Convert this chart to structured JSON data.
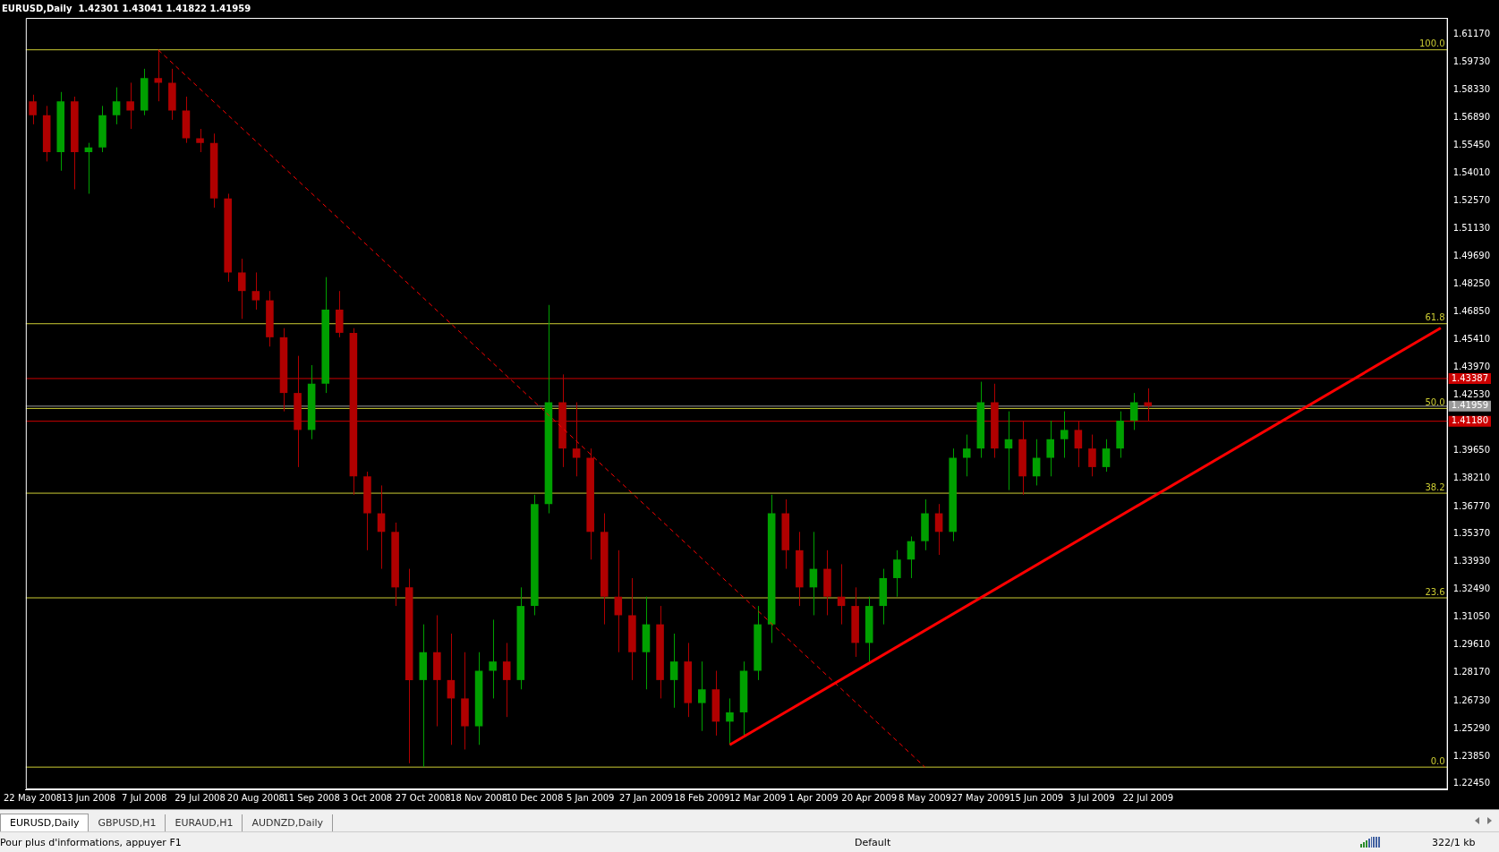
{
  "chart_data": {
    "type": "candlestick",
    "title": "EURUSD,Daily  1.42301 1.43041 1.41822 1.41959",
    "categories": [
      "22 May 2008",
      null,
      null,
      null,
      "13 Jun 2008",
      null,
      null,
      null,
      "7 Jul 2008",
      null,
      null,
      null,
      "29 Jul 2008",
      null,
      null,
      null,
      "20 Aug 2008",
      null,
      null,
      null,
      "11 Sep 2008",
      null,
      null,
      null,
      "3 Oct 2008",
      null,
      null,
      null,
      "27 Oct 2008",
      null,
      null,
      null,
      "18 Nov 2008",
      null,
      null,
      null,
      "10 Dec 2008",
      null,
      null,
      null,
      "5 Jan 2009",
      null,
      null,
      null,
      "27 Jan 2009",
      null,
      null,
      null,
      "18 Feb 2009",
      null,
      null,
      null,
      "12 Mar 2009",
      null,
      null,
      null,
      "1 Apr 2009",
      null,
      null,
      null,
      "20 Apr 2009",
      null,
      null,
      null,
      "8 May 2009",
      null,
      null,
      null,
      "27 May 2009",
      null,
      null,
      null,
      "15 Jun 2009",
      null,
      null,
      null,
      "3 Jul 2009",
      null,
      null,
      null,
      "22 Jul 2009",
      null,
      null,
      null,
      null,
      null,
      null,
      null,
      null,
      null,
      null,
      null,
      null,
      null,
      null,
      null,
      null,
      null,
      null,
      null,
      null,
      null
    ],
    "series": [
      {
        "color": "#00a000",
        "ohlc": [
          null,
          null,
          [
            1.5509,
            1.582,
            1.5413,
            1.5772
          ],
          null,
          [
            1.5509,
            1.5557,
            1.5294,
            1.5533
          ],
          [
            1.5533,
            1.5748,
            1.5509,
            1.57
          ],
          [
            1.57,
            1.5844,
            1.5653,
            1.5772
          ],
          null,
          [
            1.5724,
            1.594,
            1.57,
            1.5892
          ],
          null,
          null,
          null,
          null,
          null,
          null,
          null,
          null,
          null,
          null,
          null,
          [
            1.4073,
            1.4408,
            1.4025,
            1.4312
          ],
          [
            1.4312,
            1.4863,
            1.4264,
            1.4695
          ],
          null,
          null,
          null,
          null,
          null,
          null,
          [
            1.278,
            1.3068,
            1.233,
            1.2924
          ],
          null,
          null,
          null,
          [
            1.2541,
            1.2924,
            1.2445,
            1.2828
          ],
          [
            1.2828,
            1.3092,
            1.2685,
            1.2876
          ],
          null,
          [
            1.278,
            1.3259,
            1.2732,
            1.3163
          ],
          [
            1.3163,
            1.3738,
            1.3115,
            1.369
          ],
          [
            1.369,
            1.4719,
            1.3642,
            1.4216
          ],
          null,
          null,
          null,
          null,
          null,
          null,
          [
            1.2924,
            1.3211,
            1.2732,
            1.3068
          ],
          null,
          [
            1.278,
            1.302,
            1.2637,
            1.2876
          ],
          null,
          [
            1.2661,
            1.2876,
            1.2517,
            1.2732
          ],
          null,
          [
            1.2565,
            1.2685,
            1.2445,
            1.2613
          ],
          [
            1.2613,
            1.2876,
            1.2493,
            1.2828
          ],
          [
            1.2828,
            1.3163,
            1.278,
            1.3068
          ],
          [
            1.3068,
            1.3738,
            1.2972,
            1.3642
          ],
          null,
          null,
          [
            1.3259,
            1.3546,
            1.3115,
            1.3355
          ],
          null,
          null,
          null,
          [
            1.2972,
            1.3211,
            1.2876,
            1.3163
          ],
          [
            1.3163,
            1.3355,
            1.3068,
            1.3307
          ],
          [
            1.3307,
            1.3451,
            1.3211,
            1.3403
          ],
          [
            1.3403,
            1.3522,
            1.3307,
            1.3498
          ],
          [
            1.3498,
            1.3714,
            1.3451,
            1.3642
          ],
          null,
          [
            1.3546,
            1.3977,
            1.3498,
            1.3929
          ],
          [
            1.3929,
            1.4049,
            1.3833,
            1.3977
          ],
          [
            1.3977,
            1.4322,
            1.3929,
            1.4216
          ],
          null,
          [
            1.3977,
            1.4169,
            1.3762,
            1.4025
          ],
          null,
          [
            1.3833,
            1.4025,
            1.3786,
            1.3929
          ],
          [
            1.3929,
            1.4121,
            1.3833,
            1.4025
          ],
          [
            1.4025,
            1.4169,
            1.3929,
            1.4073
          ],
          null,
          null,
          [
            1.3881,
            1.4025,
            1.3857,
            1.3977
          ],
          [
            1.3977,
            1.4169,
            1.3929,
            1.4121
          ],
          [
            1.4121,
            1.4264,
            1.4073,
            1.4216
          ],
          null,
          null,
          null,
          null,
          null,
          null,
          null,
          null,
          null,
          null,
          null,
          null,
          null,
          null,
          null,
          null,
          null,
          null,
          null,
          null,
          null,
          null
        ]
      },
      {
        "color": "#b00000",
        "ohlc": [
          [
            1.5772,
            1.5806,
            1.5653,
            1.57
          ],
          [
            1.57,
            1.5748,
            1.5461,
            1.5509
          ],
          null,
          [
            1.5772,
            1.5796,
            1.5317,
            1.5509
          ],
          null,
          null,
          null,
          [
            1.5772,
            1.5868,
            1.5629,
            1.5724
          ],
          null,
          [
            1.5892,
            1.6038,
            1.5772,
            1.5868
          ],
          [
            1.5868,
            1.594,
            1.5676,
            1.5724
          ],
          [
            1.5724,
            1.5796,
            1.5557,
            1.5581
          ],
          [
            1.5581,
            1.5629,
            1.5509,
            1.5557
          ],
          [
            1.5557,
            1.5605,
            1.5222,
            1.527
          ],
          [
            1.527,
            1.5294,
            1.4839,
            1.4887
          ],
          [
            1.4887,
            1.4958,
            1.4647,
            1.4791
          ],
          [
            1.4791,
            1.4887,
            1.4695,
            1.4743
          ],
          [
            1.4743,
            1.4791,
            1.4504,
            1.4552
          ],
          [
            1.4552,
            1.4599,
            1.4169,
            1.4264
          ],
          [
            1.4264,
            1.4456,
            1.3881,
            1.4073
          ],
          null,
          null,
          [
            1.4695,
            1.4791,
            1.4552,
            1.4575
          ],
          [
            1.4575,
            1.4599,
            1.3738,
            1.3833
          ],
          [
            1.3833,
            1.3857,
            1.3451,
            1.3642
          ],
          [
            1.3642,
            1.3786,
            1.3355,
            1.3546
          ],
          [
            1.3546,
            1.3594,
            1.3163,
            1.3259
          ],
          [
            1.3259,
            1.3355,
            1.235,
            1.278
          ],
          null,
          [
            1.2924,
            1.3115,
            1.2541,
            1.278
          ],
          [
            1.278,
            1.302,
            1.2445,
            1.2685
          ],
          [
            1.2685,
            1.2924,
            1.2421,
            1.2541
          ],
          null,
          null,
          [
            1.2876,
            1.2972,
            1.2589,
            1.278
          ],
          null,
          null,
          null,
          [
            1.4216,
            1.436,
            1.3881,
            1.3977
          ],
          [
            1.3977,
            1.4216,
            1.3833,
            1.3929
          ],
          [
            1.3929,
            1.3977,
            1.3403,
            1.3546
          ],
          [
            1.3546,
            1.3642,
            1.3068,
            1.3211
          ],
          [
            1.3211,
            1.3451,
            1.2924,
            1.3115
          ],
          [
            1.3115,
            1.3307,
            1.278,
            1.2924
          ],
          null,
          [
            1.3068,
            1.3163,
            1.2685,
            1.278
          ],
          null,
          [
            1.2876,
            1.2972,
            1.2589,
            1.2661
          ],
          null,
          [
            1.2732,
            1.2828,
            1.2493,
            1.2565
          ],
          null,
          null,
          null,
          null,
          [
            1.3642,
            1.3714,
            1.3355,
            1.3451
          ],
          [
            1.3451,
            1.3546,
            1.3163,
            1.3259
          ],
          null,
          [
            1.3355,
            1.3451,
            1.3115,
            1.3211
          ],
          [
            1.3211,
            1.3379,
            1.3068,
            1.3163
          ],
          [
            1.3163,
            1.3259,
            1.29,
            1.2972
          ],
          null,
          null,
          null,
          null,
          null,
          [
            1.3642,
            1.369,
            1.3427,
            1.3546
          ],
          null,
          null,
          null,
          [
            1.4216,
            1.4312,
            1.3929,
            1.3977
          ],
          null,
          [
            1.4025,
            1.4121,
            1.3738,
            1.3833
          ],
          null,
          null,
          null,
          [
            1.4073,
            1.4121,
            1.3881,
            1.3977
          ],
          [
            1.3977,
            1.4049,
            1.3833,
            1.3881
          ],
          null,
          null,
          null,
          [
            1.4216,
            1.4288,
            1.4121,
            1.41959
          ],
          null,
          null,
          null,
          null,
          null,
          null,
          null,
          null,
          null,
          null,
          null,
          null,
          null,
          null,
          null,
          null,
          null,
          null,
          null,
          null,
          null
        ]
      },
      {
        "type": "line",
        "color": "#ff0000",
        "line_style": "dashed",
        "values": [
          null,
          null,
          null,
          null,
          null,
          null,
          null,
          null,
          null,
          1.6038,
          null,
          null,
          null,
          null,
          null,
          null,
          null,
          null,
          null,
          null,
          null,
          null,
          null,
          null,
          null,
          null,
          null,
          null,
          null,
          null,
          null,
          null,
          null,
          null,
          null,
          null,
          null,
          null,
          null,
          null,
          null,
          null,
          null,
          null,
          null,
          null,
          null,
          null,
          null,
          null,
          null,
          null,
          null,
          null,
          null,
          null,
          null,
          null,
          null,
          null,
          null,
          null,
          null,
          null,
          1.233,
          null,
          null,
          null,
          null,
          null,
          null,
          null,
          null,
          null,
          null,
          null,
          null,
          null,
          null,
          null,
          null,
          null,
          null,
          null,
          null,
          null,
          null,
          null,
          null,
          null,
          null,
          null,
          null,
          null,
          null,
          null,
          null,
          null,
          null,
          null,
          null,
          null
        ]
      },
      {
        "type": "line",
        "color": "#ff0000",
        "line_style": "solid",
        "values": [
          null,
          null,
          null,
          null,
          null,
          null,
          null,
          null,
          null,
          null,
          null,
          null,
          null,
          null,
          null,
          null,
          null,
          null,
          null,
          null,
          null,
          null,
          null,
          null,
          null,
          null,
          null,
          null,
          null,
          null,
          null,
          null,
          null,
          null,
          null,
          null,
          null,
          null,
          null,
          null,
          null,
          null,
          null,
          null,
          null,
          null,
          null,
          null,
          null,
          null,
          1.2445,
          null,
          null,
          null,
          null,
          null,
          null,
          null,
          null,
          null,
          null,
          null,
          null,
          null,
          null,
          null,
          null,
          null,
          null,
          null,
          null,
          null,
          null,
          null,
          null,
          null,
          null,
          null,
          null,
          null,
          null,
          null,
          null,
          null,
          null,
          null,
          null,
          null,
          null,
          null,
          null,
          null,
          null,
          null,
          null,
          null,
          null,
          null,
          null,
          null,
          null,
          1.46
        ]
      }
    ],
    "ylim": [
      1.2215,
      1.6203
    ],
    "yticks": [
      {
        "value": 1.2245,
        "label": "1.22450"
      },
      {
        "value": 1.2385,
        "label": "1.23850"
      },
      {
        "value": 1.2529,
        "label": "1.25290"
      },
      {
        "value": 1.2673,
        "label": "1.26730"
      },
      {
        "value": 1.2817,
        "label": "1.28170"
      },
      {
        "value": 1.2961,
        "label": "1.29610"
      },
      {
        "value": 1.3105,
        "label": "1.31050"
      },
      {
        "value": 1.3249,
        "label": "1.32490"
      },
      {
        "value": 1.3393,
        "label": "1.33930"
      },
      {
        "value": 1.3537,
        "label": "1.35370"
      },
      {
        "value": 1.3677,
        "label": "1.36770"
      },
      {
        "value": 1.3821,
        "label": "1.38210"
      },
      {
        "value": 1.3965,
        "label": "1.39650"
      },
      {
        "value": 1.4253,
        "label": "1.42530"
      },
      {
        "value": 1.4397,
        "label": "1.43970"
      },
      {
        "value": 1.4541,
        "label": "1.45410"
      },
      {
        "value": 1.4685,
        "label": "1.46850"
      },
      {
        "value": 1.4825,
        "label": "1.48250"
      },
      {
        "value": 1.4969,
        "label": "1.49690"
      },
      {
        "value": 1.5113,
        "label": "1.51130"
      },
      {
        "value": 1.5257,
        "label": "1.52570"
      },
      {
        "value": 1.5401,
        "label": "1.54010"
      },
      {
        "value": 1.5545,
        "label": "1.55450"
      },
      {
        "value": 1.5689,
        "label": "1.56890"
      },
      {
        "value": 1.5833,
        "label": "1.58330"
      },
      {
        "value": 1.5973,
        "label": "1.59730"
      },
      {
        "value": 1.6117,
        "label": "1.61170"
      }
    ],
    "ref_lines": [
      {
        "axis": "y",
        "value": 1.6038,
        "color": "#cccc33"
      },
      {
        "axis": "y",
        "value": 1.4622,
        "color": "#cccc33"
      },
      {
        "axis": "y",
        "value": 1.4184,
        "color": "#cccc33"
      },
      {
        "axis": "y",
        "value": 1.3746,
        "color": "#cccc33"
      },
      {
        "axis": "y",
        "value": 1.3205,
        "color": "#cccc33"
      },
      {
        "axis": "y",
        "value": 1.233,
        "color": "#cccc33"
      },
      {
        "axis": "y",
        "value": 1.43387,
        "label": "1.43387",
        "color": "#cc0000"
      },
      {
        "axis": "y",
        "value": 1.4118,
        "label": "1.41180",
        "color": "#cc0000"
      },
      {
        "axis": "y",
        "value": 1.41959,
        "label": "1.41959",
        "color": "#9a9a9a"
      }
    ],
    "legend": false,
    "annotations": [
      {
        "text": "100.0",
        "y": 1.6038
      },
      {
        "text": "61.8",
        "y": 1.4622
      },
      {
        "text": "50.0",
        "y": 1.4184
      },
      {
        "text": "38.2",
        "y": 1.3746
      },
      {
        "text": "23.6",
        "y": 1.3205
      },
      {
        "text": "0.0",
        "y": 1.233
      },
      "EURUSD,Daily",
      "GBPUSD,H1",
      "EURAUD,H1",
      "AUDNZD,Daily",
      "Pour plus d'informations, appuyer F1",
      "Default",
      "322/1 kb"
    ]
  }
}
